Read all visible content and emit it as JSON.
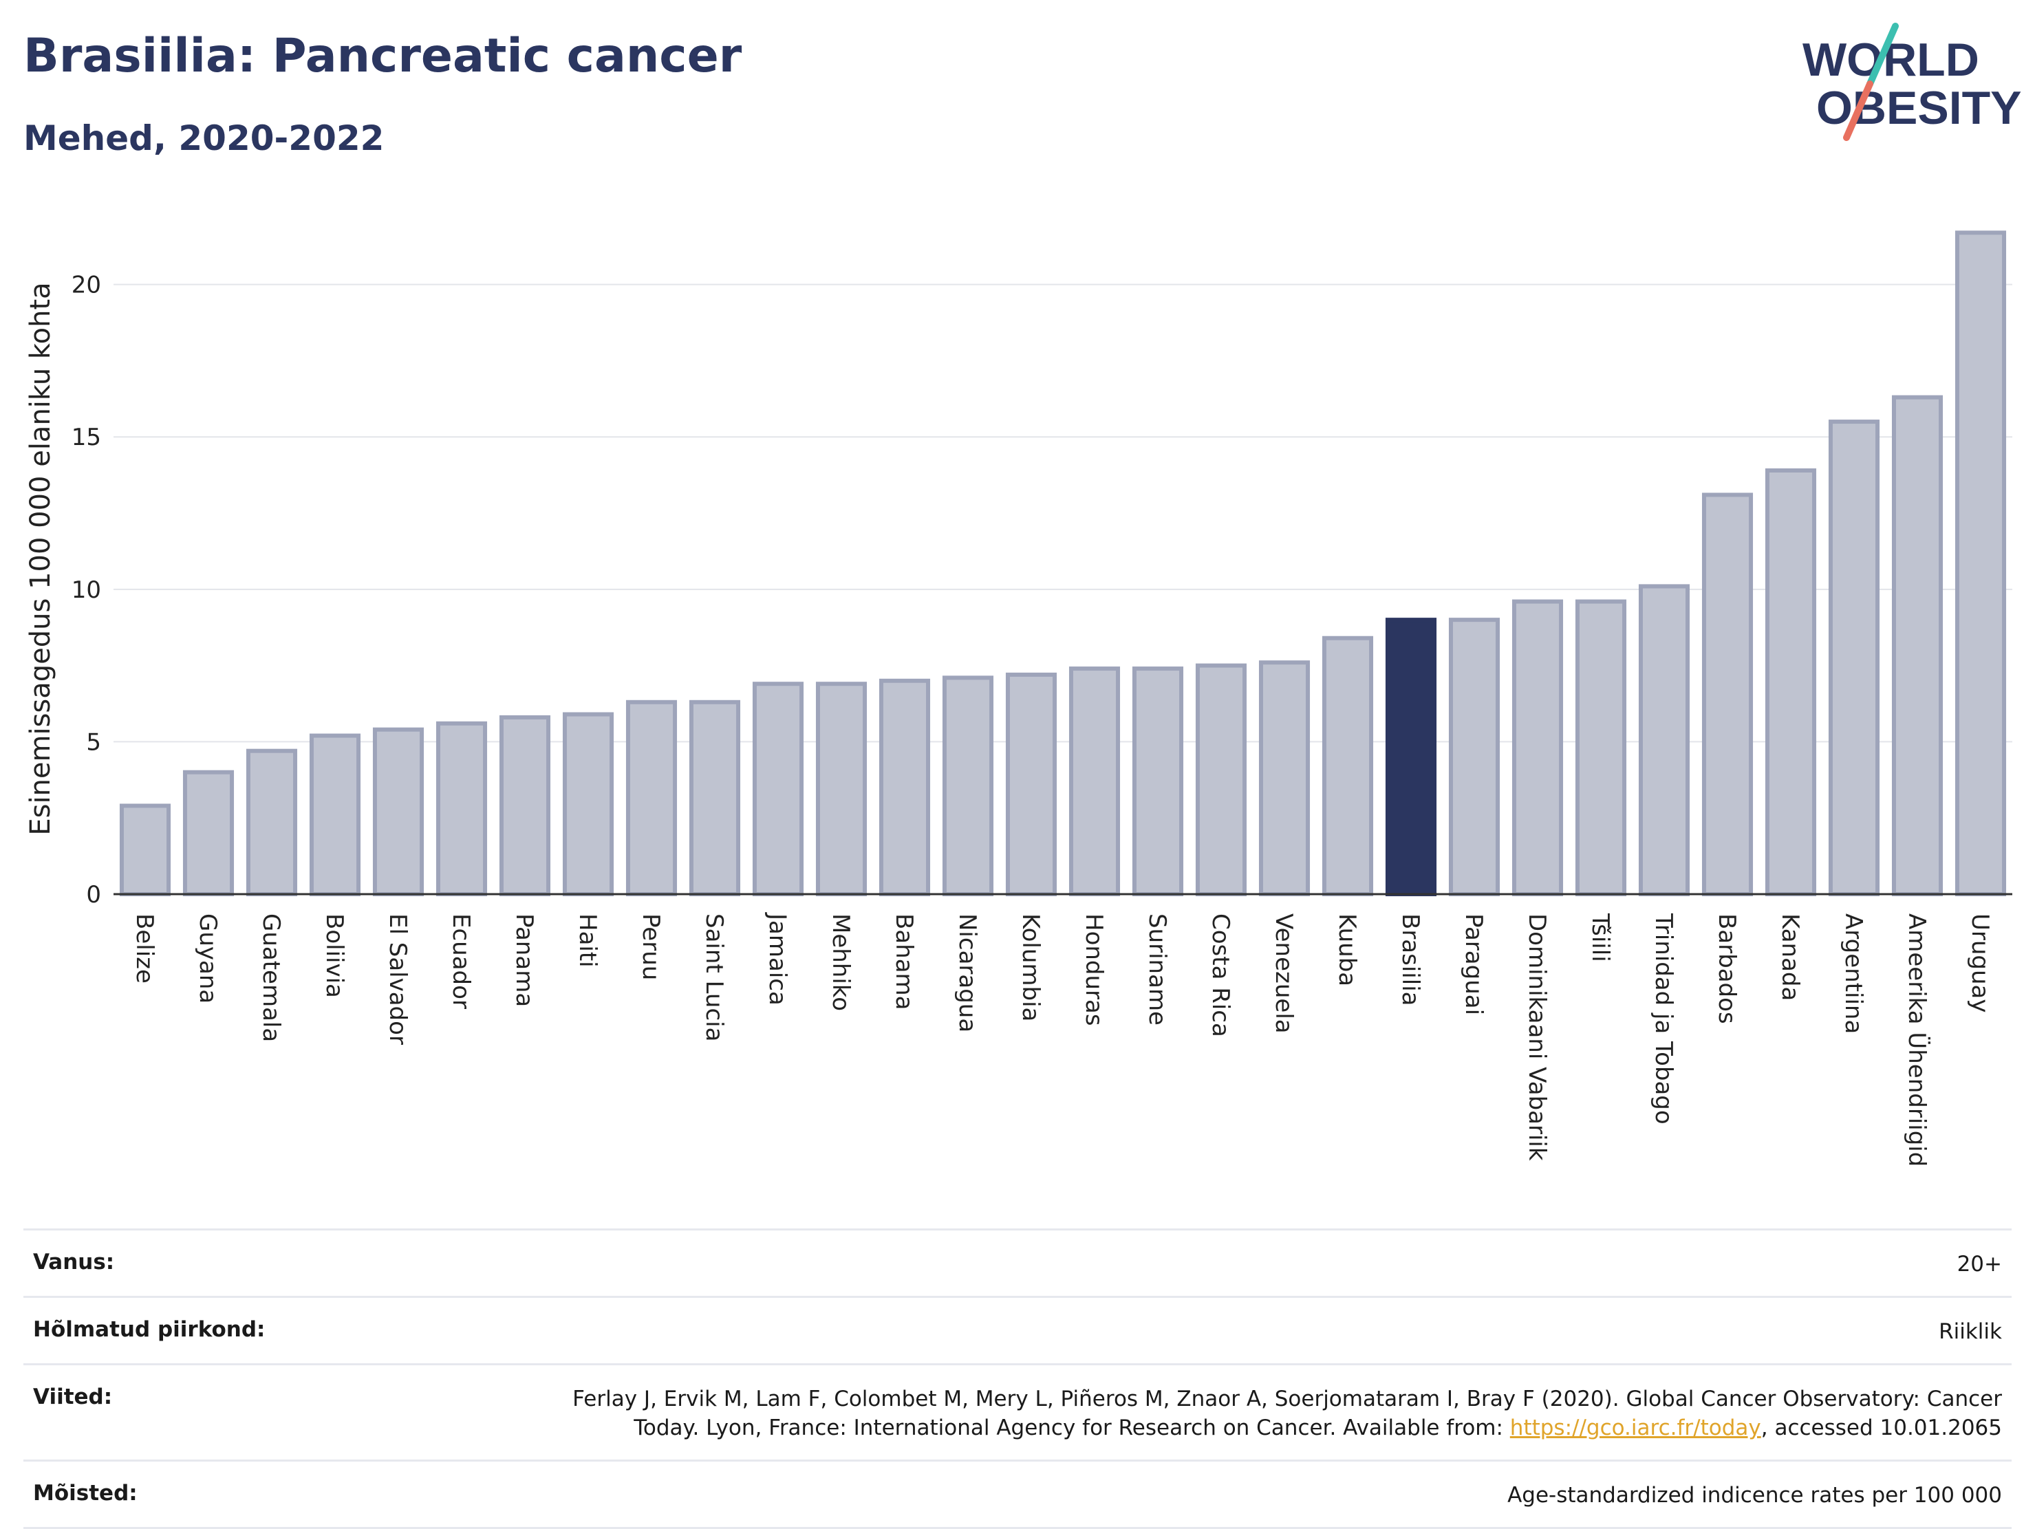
{
  "header": {
    "title": "Brasiilia: Pancreatic cancer",
    "subtitle": "Mehed, 2020-2022"
  },
  "logo": {
    "line1": "WORLD",
    "line2": "OBESITY"
  },
  "colors": {
    "bar_fill": "#bfc3d0",
    "bar_stroke": "#9ea4ba",
    "highlight": "#2b3660",
    "title": "#2b3660",
    "grid": "#e3e5ea",
    "logo_teal": "#3cbfb0",
    "logo_coral": "#e8705f",
    "link": "#e0a42a"
  },
  "chart_data": {
    "type": "bar",
    "ylabel": "Esinemissagedus 100 000 elaniku kohta",
    "ylim": [
      0,
      22
    ],
    "yticks": [
      0,
      5,
      10,
      15,
      20
    ],
    "grid": true,
    "highlight_category": "Brasiilia",
    "categories": [
      "Belize",
      "Guyana",
      "Guatemala",
      "Boliivia",
      "El Salvador",
      "Ecuador",
      "Panama",
      "Haiti",
      "Peruu",
      "Saint Lucia",
      "Jamaica",
      "Mehhiko",
      "Bahama",
      "Nicaragua",
      "Kolumbia",
      "Honduras",
      "Suriname",
      "Costa Rica",
      "Venezuela",
      "Kuuba",
      "Brasiilia",
      "Paraguai",
      "Dominikaani Vabariik",
      "Tšiili",
      "Trinidad ja Tobago",
      "Barbados",
      "Kanada",
      "Argentiina",
      "Ameerika Ühendriigid",
      "Uruguay"
    ],
    "values": [
      2.9,
      4.0,
      4.7,
      5.2,
      5.4,
      5.6,
      5.8,
      5.9,
      6.3,
      6.3,
      6.9,
      6.9,
      7.0,
      7.1,
      7.2,
      7.4,
      7.4,
      7.5,
      7.6,
      8.4,
      9.0,
      9.0,
      9.6,
      9.6,
      10.1,
      13.1,
      13.9,
      15.5,
      16.3,
      21.7
    ]
  },
  "info": [
    {
      "label": "Vanus:",
      "value": "20+"
    },
    {
      "label": "Hõlmatud piirkond:",
      "value": "Riiklik"
    },
    {
      "label": "Viited:",
      "value_pre": "Ferlay J, Ervik M, Lam F, Colombet M, Mery L, Piñeros M, Znaor A, Soerjomataram I, Bray F (2020). Global Cancer Observatory: Cancer Today. Lyon, France: International Agency for Research on Cancer. Available from: ",
      "link": "https://gco.iarc.fr/today",
      "value_post": ", accessed 10.01.2065"
    },
    {
      "label": "Mõisted:",
      "value": "Age-standardized indicence rates per 100 000"
    }
  ]
}
